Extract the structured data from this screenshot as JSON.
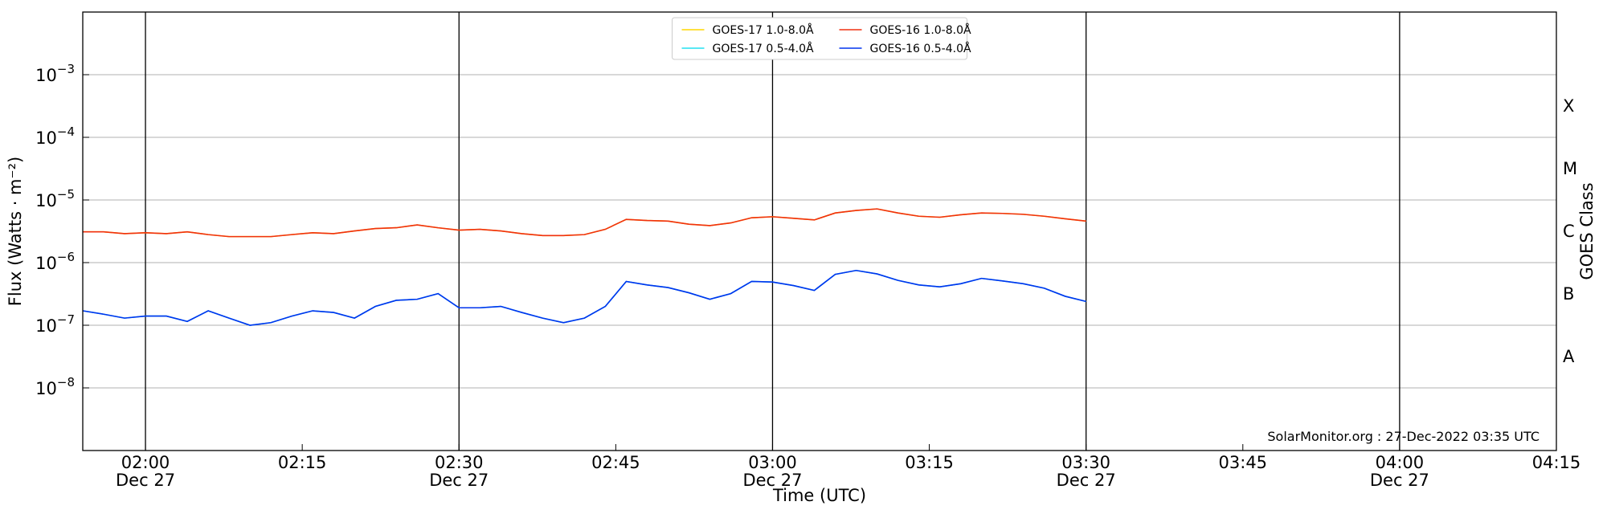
{
  "chart_data": {
    "type": "line",
    "x": [
      "01:54",
      "01:56",
      "01:58",
      "02:00",
      "02:02",
      "02:04",
      "02:06",
      "02:08",
      "02:10",
      "02:12",
      "02:14",
      "02:16",
      "02:18",
      "02:20",
      "02:22",
      "02:24",
      "02:26",
      "02:28",
      "02:30",
      "02:32",
      "02:34",
      "02:36",
      "02:38",
      "02:40",
      "02:42",
      "02:44",
      "02:46",
      "02:48",
      "02:50",
      "02:52",
      "02:54",
      "02:56",
      "02:58",
      "03:00",
      "03:02",
      "03:04",
      "03:06",
      "03:08",
      "03:10",
      "03:12",
      "03:14",
      "03:16",
      "03:18",
      "03:20",
      "03:22",
      "03:24",
      "03:26",
      "03:28",
      "03:30"
    ],
    "series": [
      {
        "name": "GOES-17 1.0-8.0Å",
        "color": "#ffd700",
        "values": [
          3.1e-06,
          3.1e-06,
          2.9e-06,
          3e-06,
          2.9e-06,
          3.1e-06,
          2.8e-06,
          2.6e-06,
          2.6e-06,
          2.6e-06,
          2.8e-06,
          3e-06,
          2.9e-06,
          3.2e-06,
          3.5e-06,
          3.6e-06,
          4e-06,
          3.6e-06,
          3.3e-06,
          3.4e-06,
          3.2e-06,
          2.9e-06,
          2.7e-06,
          2.7e-06,
          2.8e-06,
          3.4e-06,
          4.9e-06,
          4.7e-06,
          4.6e-06,
          4.1e-06,
          3.9e-06,
          4.3e-06,
          5.2e-06,
          5.4e-06,
          5.1e-06,
          4.8e-06,
          6.2e-06,
          6.8e-06,
          7.2e-06,
          6.2e-06,
          5.5e-06,
          5.3e-06,
          5.8e-06,
          6.2e-06,
          6.1e-06,
          5.9e-06,
          5.5e-06,
          5e-06,
          4.6e-06
        ]
      },
      {
        "name": "GOES-17 0.5-4.0Å",
        "color": "#22e0f0",
        "values": [
          1.7e-07,
          1.5e-07,
          1.3e-07,
          1.4e-07,
          1.4e-07,
          1.15e-07,
          1.7e-07,
          1.3e-07,
          1e-07,
          1.1e-07,
          1.4e-07,
          1.7e-07,
          1.6e-07,
          1.3e-07,
          2e-07,
          2.5e-07,
          2.6e-07,
          3.2e-07,
          1.9e-07,
          1.9e-07,
          2e-07,
          1.6e-07,
          1.3e-07,
          1.1e-07,
          1.3e-07,
          2e-07,
          5e-07,
          4.4e-07,
          4e-07,
          3.3e-07,
          2.6e-07,
          3.2e-07,
          5e-07,
          4.9e-07,
          4.3e-07,
          3.6e-07,
          6.5e-07,
          7.5e-07,
          6.6e-07,
          5.2e-07,
          4.4e-07,
          4.1e-07,
          4.6e-07,
          5.6e-07,
          5.1e-07,
          4.6e-07,
          3.9e-07,
          2.9e-07,
          2.4e-07
        ]
      },
      {
        "name": "GOES-16 1.0-8.0Å",
        "color": "#f03010",
        "values": [
          3.1e-06,
          3.1e-06,
          2.9e-06,
          3e-06,
          2.9e-06,
          3.1e-06,
          2.8e-06,
          2.6e-06,
          2.6e-06,
          2.6e-06,
          2.8e-06,
          3e-06,
          2.9e-06,
          3.2e-06,
          3.5e-06,
          3.6e-06,
          4e-06,
          3.6e-06,
          3.3e-06,
          3.4e-06,
          3.2e-06,
          2.9e-06,
          2.7e-06,
          2.7e-06,
          2.8e-06,
          3.4e-06,
          4.9e-06,
          4.7e-06,
          4.6e-06,
          4.1e-06,
          3.9e-06,
          4.3e-06,
          5.2e-06,
          5.4e-06,
          5.1e-06,
          4.8e-06,
          6.2e-06,
          6.8e-06,
          7.2e-06,
          6.2e-06,
          5.5e-06,
          5.3e-06,
          5.8e-06,
          6.2e-06,
          6.1e-06,
          5.9e-06,
          5.5e-06,
          5e-06,
          4.6e-06
        ]
      },
      {
        "name": "GOES-16 0.5-4.0Å",
        "color": "#0033ee",
        "values": [
          1.7e-07,
          1.5e-07,
          1.3e-07,
          1.4e-07,
          1.4e-07,
          1.15e-07,
          1.7e-07,
          1.3e-07,
          1e-07,
          1.1e-07,
          1.4e-07,
          1.7e-07,
          1.6e-07,
          1.3e-07,
          2e-07,
          2.5e-07,
          2.6e-07,
          3.2e-07,
          1.9e-07,
          1.9e-07,
          2e-07,
          1.6e-07,
          1.3e-07,
          1.1e-07,
          1.3e-07,
          2e-07,
          5e-07,
          4.4e-07,
          4e-07,
          3.3e-07,
          2.6e-07,
          3.2e-07,
          5e-07,
          4.9e-07,
          4.3e-07,
          3.6e-07,
          6.5e-07,
          7.5e-07,
          6.6e-07,
          5.2e-07,
          4.4e-07,
          4.1e-07,
          4.6e-07,
          5.6e-07,
          5.1e-07,
          4.6e-07,
          3.9e-07,
          2.9e-07,
          2.4e-07
        ]
      }
    ],
    "xlim": [
      "01:54",
      "04:15"
    ],
    "xticks": [
      {
        "value": "02:00",
        "label": "02:00",
        "date": "Dec 27"
      },
      "02:15",
      {
        "value": "02:30",
        "label": "02:30",
        "date": "Dec 27"
      },
      "02:45",
      {
        "value": "03:00",
        "label": "03:00",
        "date": "Dec 27"
      },
      "03:15",
      {
        "value": "03:30",
        "label": "03:30",
        "date": "Dec 27"
      },
      "03:45",
      {
        "value": "04:00",
        "label": "04:00",
        "date": "Dec 27"
      },
      "04:15"
    ],
    "ylim": [
      1e-09,
      0.01
    ],
    "log_y": true,
    "yticks": [
      {
        "value": 1e-08,
        "label": "10",
        "exponent": "−8"
      },
      {
        "value": 1e-07,
        "label": "10",
        "exponent": "−7"
      },
      {
        "value": 1e-06,
        "label": "10",
        "exponent": "−6"
      },
      {
        "value": 1e-05,
        "label": "10",
        "exponent": "−5"
      },
      {
        "value": 0.0001,
        "label": "10",
        "exponent": "−4"
      },
      {
        "value": 0.001,
        "label": "10",
        "exponent": "−3"
      }
    ],
    "y2lim": [
      1e-09,
      0.01
    ],
    "y2ticks": [
      {
        "value": 3.16e-08,
        "label": "A"
      },
      {
        "value": 3.16e-07,
        "label": "B"
      },
      {
        "value": 3.16e-06,
        "label": "C"
      },
      {
        "value": 3.16e-05,
        "label": "M"
      },
      {
        "value": 0.000316,
        "label": "X"
      }
    ],
    "xlabel": "Time (UTC)",
    "ylabel": "Flux (Watts · m⁻²)",
    "y2label": "GOES Class",
    "annotation": "SolarMonitor.org : 27-Dec-2022 03:35 UTC",
    "grid": true,
    "legend": "upper center"
  }
}
